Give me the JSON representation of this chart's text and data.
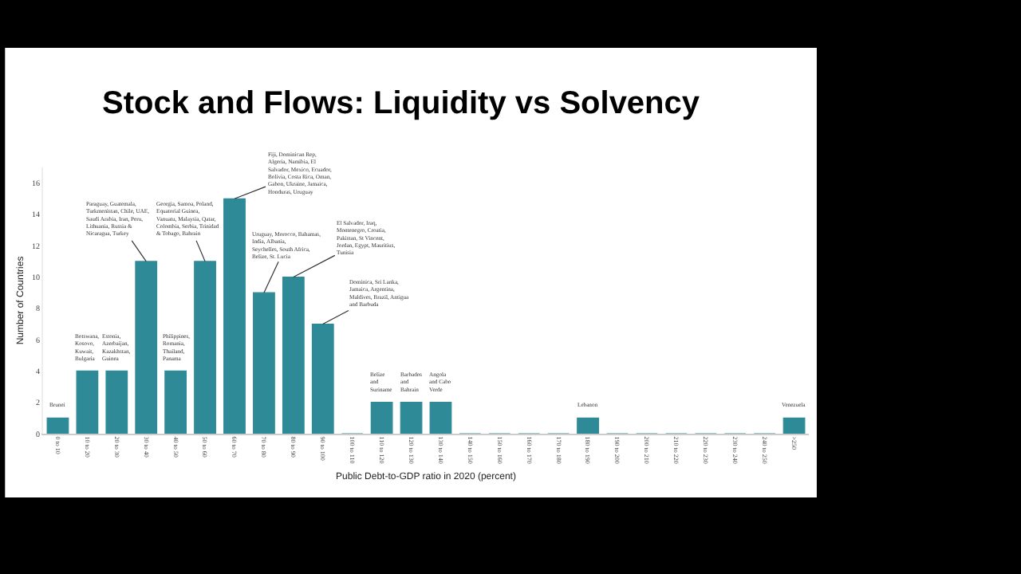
{
  "chart_data": {
    "type": "bar",
    "title": "Stock and Flows: Liquidity vs Solvency",
    "xlabel": "Public Debt-to-GDP ratio in 2020 (percent)",
    "ylabel": "Number of Countries",
    "categories": [
      "0 to 10",
      "10 to 20",
      "20 to 30",
      "30 to 40",
      "40 to 50",
      "50 to 60",
      "60 to 70",
      "70 to 80",
      "80 to 90",
      "90 to 100",
      "100 to 110",
      "110 to 120",
      "120 to 130",
      "130 to 140",
      "140 to 150",
      "150 to 160",
      "160 to 170",
      "170 to 180",
      "180 to 190",
      "190 to 200",
      "200 to 210",
      "210 to 220",
      "220 to 230",
      "230 to 240",
      "240 to 250",
      ">250"
    ],
    "values": [
      1,
      4,
      4,
      11,
      4,
      11,
      15,
      9,
      10,
      7,
      0,
      2,
      2,
      2,
      0,
      0,
      0,
      0,
      1,
      0,
      0,
      0,
      0,
      0,
      0,
      1
    ],
    "color": "#2f8a98",
    "ylim": [
      0,
      17
    ],
    "yticks": [
      0,
      2,
      4,
      6,
      8,
      10,
      12,
      14,
      16
    ],
    "grid": false,
    "legend": false,
    "annotations": [
      {
        "text": "Brunei",
        "x": "0 to 10",
        "y": 1
      },
      {
        "text": "Botswana, Kosovo, Kuwait, Bulgaria",
        "x": "10 to 20",
        "y": 4
      },
      {
        "text": "Estonia, Azerbaijan, Kazakhstan, Guinea",
        "x": "20 to 30",
        "y": 4
      },
      {
        "text": "Paraguay, Guatemala, Turkmenistan, Chile, UAE, Saudi Arabia, Iran, Peru, Lithuania, Russia & Nicaragua, Turkey",
        "x": "30 to 40",
        "y": 11
      },
      {
        "text": "Philippines, Romania, Thailand, Panama",
        "x": "40 to 50",
        "y": 4
      },
      {
        "text": "Georgia, Samoa, Poland, Equatorial Guinea, Vanuatu, Malaysia, Qatar, Colombia, Serbia, Trinidad & Tobago, Bahrain",
        "x": "50 to 60",
        "y": 11
      },
      {
        "text": "Fiji, Dominican Rep, Algeria, Namibia, El Salvador, Mexico, Ecuador, Bolivia, Costa Rica, Oman, Gabon, Ukraine, Jamaica, Honduras, Uruguay",
        "x": "60 to 70",
        "y": 15
      },
      {
        "text": "Uruguay, Morocco, Bahamas, India, Albania, Seychelles, South Africa, Belize, St. Lucia",
        "x": "70 to 80",
        "y": 9
      },
      {
        "text": "El Salvador, Iraq, Montenegro, Croatia, Pakistan, St Vincent, Jordan, Egypt, Mauritius, Tunisia",
        "x": "80 to 90",
        "y": 10
      },
      {
        "text": "Dominica, Sri Lanka, Jamaica, Argentina, Maldives, Brazil, Antigua and Barbuda",
        "x": "90 to 100",
        "y": 7
      },
      {
        "text": "Belize and Suriname",
        "x": "110 to 120",
        "y": 2
      },
      {
        "text": "Barbados and Bahrain",
        "x": "120 to 130",
        "y": 2
      },
      {
        "text": "Angola and Cabo Verde",
        "x": "130 to 140",
        "y": 2
      },
      {
        "text": "Lebanon",
        "x": "180 to 190",
        "y": 1
      },
      {
        "text": "Venezuela",
        "x": ">250",
        "y": 1
      }
    ]
  }
}
